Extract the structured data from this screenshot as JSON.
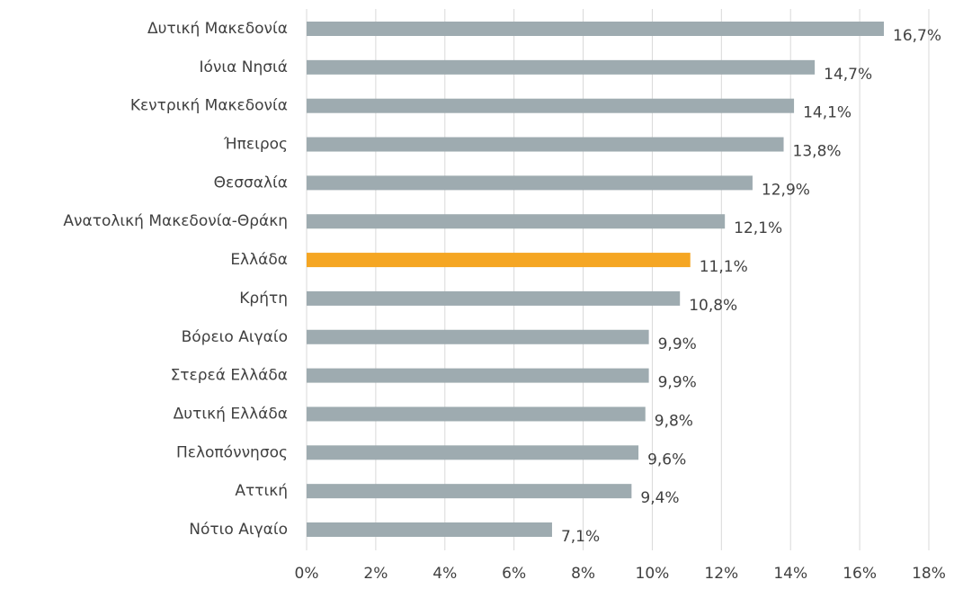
{
  "chart_data": {
    "type": "hbar",
    "categories": [
      "Δυτική Μακεδονία",
      "Ιόνια Νησιά",
      "Κεντρική Μακεδονία",
      "Ήπειρος",
      "Θεσσαλία",
      "Ανατολική Μακεδονία-Θράκη",
      "Ελλάδα",
      "Κρήτη",
      "Βόρειο Αιγαίο",
      "Στερεά Ελλάδα",
      "Δυτική Ελλάδα",
      "Πελοπόννησος",
      "Αττική",
      "Νότιο Αιγαίο"
    ],
    "values": [
      16.7,
      14.7,
      14.1,
      13.8,
      12.9,
      12.1,
      11.1,
      10.8,
      9.9,
      9.9,
      9.8,
      9.6,
      9.4,
      7.1
    ],
    "value_labels": [
      "16,7%",
      "14,7%",
      "14,1%",
      "13,8%",
      "12,9%",
      "12,1%",
      "11,1%",
      "10,8%",
      "9,9%",
      "9,9%",
      "9,8%",
      "9,6%",
      "9,4%",
      "7,1%"
    ],
    "colors": [
      "#9eabb0",
      "#9eabb0",
      "#9eabb0",
      "#9eabb0",
      "#9eabb0",
      "#9eabb0",
      "#f5a623",
      "#9eabb0",
      "#9eabb0",
      "#9eabb0",
      "#9eabb0",
      "#9eabb0",
      "#9eabb0",
      "#9eabb0"
    ],
    "xlim": [
      0,
      18
    ],
    "xticks": [
      {
        "value": 0,
        "label": "0%"
      },
      {
        "value": 2,
        "label": "2%"
      },
      {
        "value": 4,
        "label": "4%"
      },
      {
        "value": 6,
        "label": "6%"
      },
      {
        "value": 8,
        "label": "8%"
      },
      {
        "value": 10,
        "label": "10%"
      },
      {
        "value": 12,
        "label": "12%"
      },
      {
        "value": 14,
        "label": "14%"
      },
      {
        "value": 16,
        "label": "16%"
      },
      {
        "value": 18,
        "label": "18%"
      }
    ],
    "grid": true
  }
}
